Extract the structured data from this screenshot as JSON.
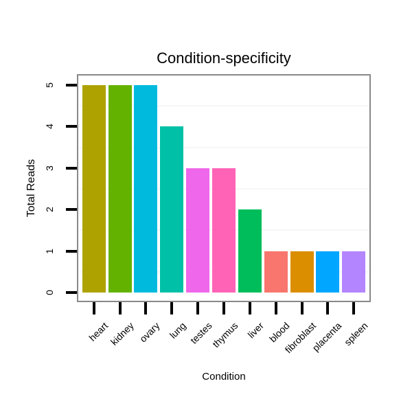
{
  "title": "Condition-specificity",
  "x_axis": {
    "title": "Condition",
    "tick_labels": [
      "heart",
      "kidney",
      "ovary",
      "lung",
      "testes",
      "thymus",
      "liver",
      "blood",
      "fibroblast",
      "placenta",
      "spleen"
    ]
  },
  "y_axis": {
    "title": "Total Reads",
    "tick_labels": [
      "0",
      "1",
      "2",
      "3",
      "4",
      "5"
    ],
    "tick_values": [
      0,
      1,
      2,
      3,
      4,
      5
    ]
  },
  "chart_data": {
    "type": "bar",
    "title": "Condition-specificity",
    "xlabel": "Condition",
    "ylabel": "Total Reads",
    "categories": [
      "heart",
      "kidney",
      "ovary",
      "lung",
      "testes",
      "thymus",
      "liver",
      "blood",
      "fibroblast",
      "placenta",
      "spleen"
    ],
    "values": [
      5,
      5,
      5,
      4,
      3,
      3,
      2,
      1,
      1,
      1,
      1
    ],
    "bar_colors": [
      "#AEA200",
      "#64B200",
      "#00BADE",
      "#00C1A7",
      "#EF67EB",
      "#FF63B6",
      "#00BD5C",
      "#F8766D",
      "#DB8E00",
      "#00A6FF",
      "#B385FF"
    ],
    "ylim": [
      0,
      5
    ],
    "y_minor_gridlines": [
      0.5,
      1.5,
      2.5,
      3.5,
      4.5
    ],
    "grid": "minor horizontal only",
    "legend_position": "none"
  },
  "colors": {
    "background": "#ffffff",
    "panel_border": "#888888",
    "gridline": "#f6f6f6",
    "tick": "#000000",
    "text": "#000000"
  }
}
